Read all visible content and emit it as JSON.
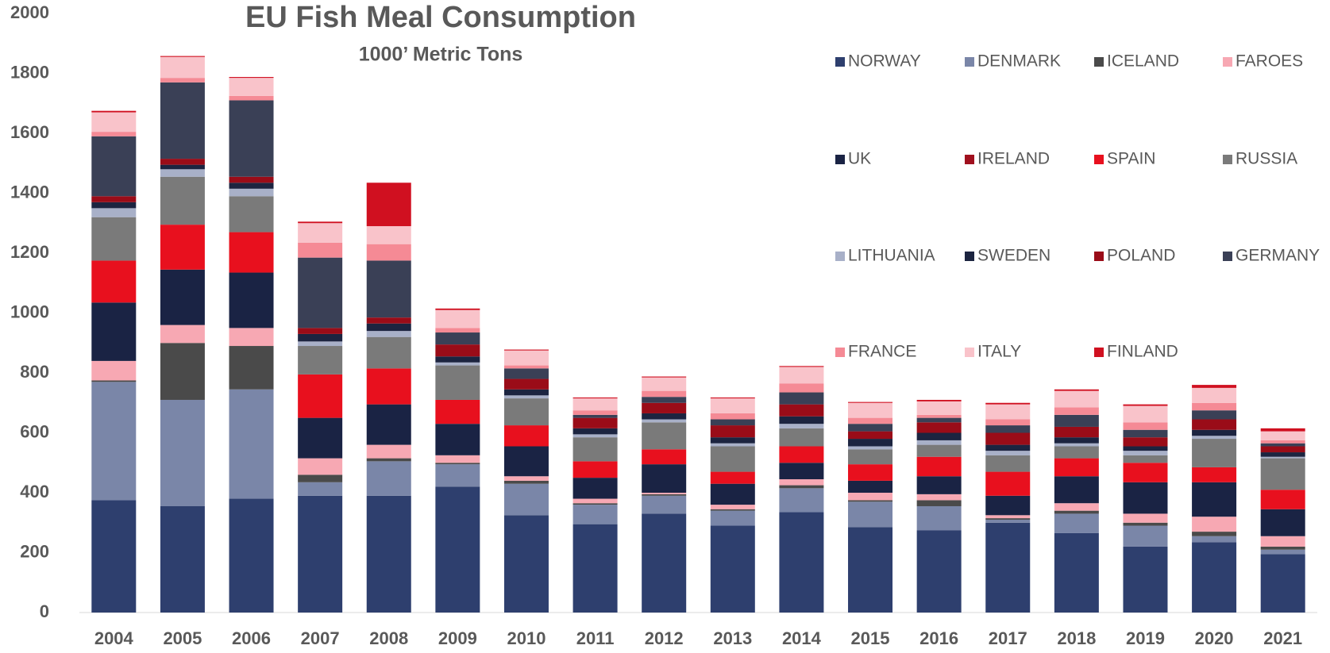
{
  "chart_data": {
    "type": "stacked_bar",
    "title": "EU Fish Meal Consumption",
    "subtitle": "1000’ Metric Tons",
    "categories": [
      "2004",
      "2005",
      "2006",
      "2007",
      "2008",
      "2009",
      "2010",
      "2011",
      "2012",
      "2013",
      "2014",
      "2015",
      "2016",
      "2017",
      "2018",
      "2019",
      "2020",
      "2021"
    ],
    "ylim": [
      0,
      2000
    ],
    "yticks": [
      0,
      200,
      400,
      600,
      800,
      1000,
      1200,
      1400,
      1600,
      1800,
      2000
    ],
    "grid": false,
    "legend": "top-right",
    "series": [
      {
        "name": "NORWAY",
        "color": "#2e3f6e",
        "values": [
          375,
          355,
          380,
          390,
          390,
          420,
          325,
          295,
          330,
          290,
          335,
          285,
          275,
          300,
          265,
          220,
          235,
          195
        ]
      },
      {
        "name": "DENMARK",
        "color": "#7a86a8",
        "values": [
          395,
          355,
          365,
          45,
          115,
          75,
          105,
          65,
          60,
          50,
          80,
          85,
          80,
          10,
          65,
          70,
          20,
          15
        ]
      },
      {
        "name": "ICELAND",
        "color": "#4a4a4a",
        "values": [
          5,
          190,
          145,
          25,
          10,
          5,
          10,
          5,
          5,
          5,
          10,
          5,
          20,
          5,
          10,
          10,
          15,
          10
        ]
      },
      {
        "name": "FAROES",
        "color": "#f7a8b3",
        "values": [
          65,
          60,
          60,
          55,
          45,
          25,
          15,
          15,
          5,
          15,
          20,
          25,
          20,
          10,
          25,
          30,
          50,
          35
        ]
      },
      {
        "name": "UK",
        "color": "#1a2344",
        "values": [
          195,
          185,
          185,
          135,
          135,
          105,
          100,
          70,
          95,
          70,
          55,
          40,
          60,
          65,
          90,
          105,
          115,
          90
        ]
      },
      {
        "name": "IRELAND",
        "color": "#a0101e",
        "values": [
          0,
          0,
          0,
          0,
          0,
          0,
          0,
          0,
          0,
          0,
          0,
          0,
          0,
          0,
          0,
          0,
          0,
          0
        ]
      },
      {
        "name": "SPAIN",
        "color": "#e8101e",
        "values": [
          140,
          150,
          135,
          145,
          120,
          80,
          70,
          55,
          50,
          40,
          55,
          55,
          65,
          80,
          60,
          65,
          50,
          65
        ]
      },
      {
        "name": "RUSSIA",
        "color": "#7a7a7a",
        "values": [
          145,
          160,
          120,
          95,
          105,
          115,
          90,
          80,
          90,
          85,
          60,
          50,
          40,
          55,
          40,
          25,
          95,
          105
        ]
      },
      {
        "name": "LITHUANIA",
        "color": "#a8b0c8",
        "values": [
          30,
          25,
          25,
          15,
          20,
          10,
          10,
          10,
          10,
          10,
          15,
          10,
          15,
          15,
          10,
          15,
          10,
          5
        ]
      },
      {
        "name": "SWEDEN",
        "color": "#1c2440",
        "values": [
          20,
          15,
          20,
          25,
          25,
          20,
          20,
          20,
          20,
          20,
          25,
          25,
          25,
          20,
          20,
          15,
          20,
          15
        ]
      },
      {
        "name": "POLAND",
        "color": "#9a0c18",
        "values": [
          20,
          20,
          20,
          20,
          20,
          40,
          35,
          35,
          35,
          40,
          40,
          25,
          35,
          40,
          35,
          30,
          35,
          20
        ]
      },
      {
        "name": "GERMANY",
        "color": "#3a4056",
        "values": [
          200,
          255,
          255,
          235,
          190,
          40,
          35,
          10,
          20,
          20,
          40,
          25,
          15,
          25,
          40,
          25,
          30,
          10
        ]
      },
      {
        "name": "FRANCE",
        "color": "#f58a95",
        "values": [
          15,
          15,
          15,
          50,
          55,
          15,
          10,
          15,
          20,
          20,
          30,
          20,
          10,
          20,
          25,
          25,
          25,
          10
        ]
      },
      {
        "name": "ITALY",
        "color": "#f9c3ca",
        "values": [
          65,
          70,
          60,
          65,
          60,
          60,
          50,
          40,
          45,
          50,
          55,
          50,
          45,
          50,
          55,
          55,
          50,
          30
        ]
      },
      {
        "name": "FINLAND",
        "color": "#d01020",
        "values": [
          5,
          3,
          3,
          5,
          145,
          5,
          3,
          3,
          3,
          3,
          3,
          3,
          5,
          5,
          5,
          5,
          10,
          10
        ]
      }
    ]
  }
}
